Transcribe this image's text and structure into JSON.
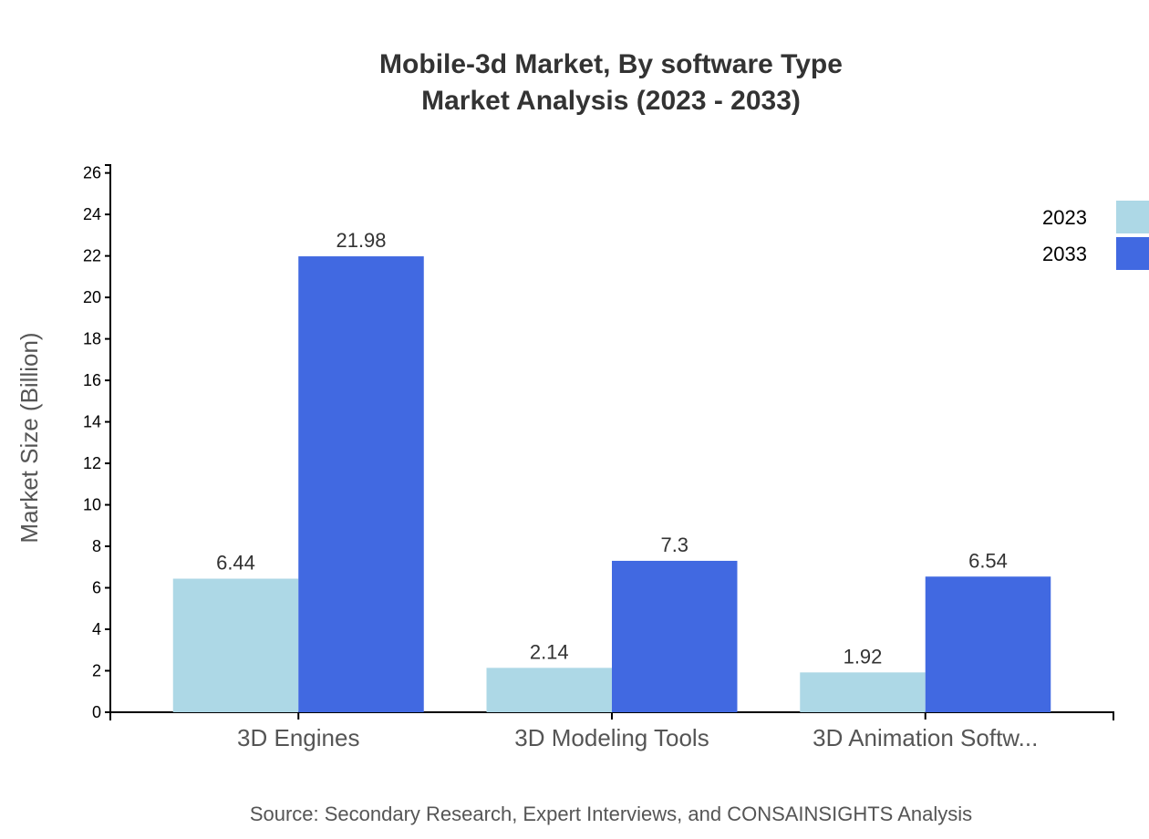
{
  "chart_data": {
    "type": "bar",
    "title": "Mobile-3d Market, By software Type",
    "subtitle": "Market Analysis (2023 - 2033)",
    "xlabel": "",
    "ylabel": "Market Size (Billion)",
    "categories": [
      "3D Engines",
      "3D Modeling Tools",
      "3D Animation Softw..."
    ],
    "series": [
      {
        "name": "2023",
        "color": "#add8e6",
        "values": [
          6.44,
          2.14,
          1.92
        ]
      },
      {
        "name": "2033",
        "color": "#4169e1",
        "values": [
          21.98,
          7.3,
          6.54
        ]
      }
    ],
    "ylim": [
      0,
      26.38
    ],
    "yticks": [
      0,
      2,
      4,
      6,
      8,
      10,
      12,
      14,
      16,
      18,
      20,
      22,
      24,
      26
    ],
    "grid": false,
    "legend_position": "top-right",
    "source": "Source: Secondary Research, Expert Interviews, and CONSAINSIGHTS Analysis"
  }
}
